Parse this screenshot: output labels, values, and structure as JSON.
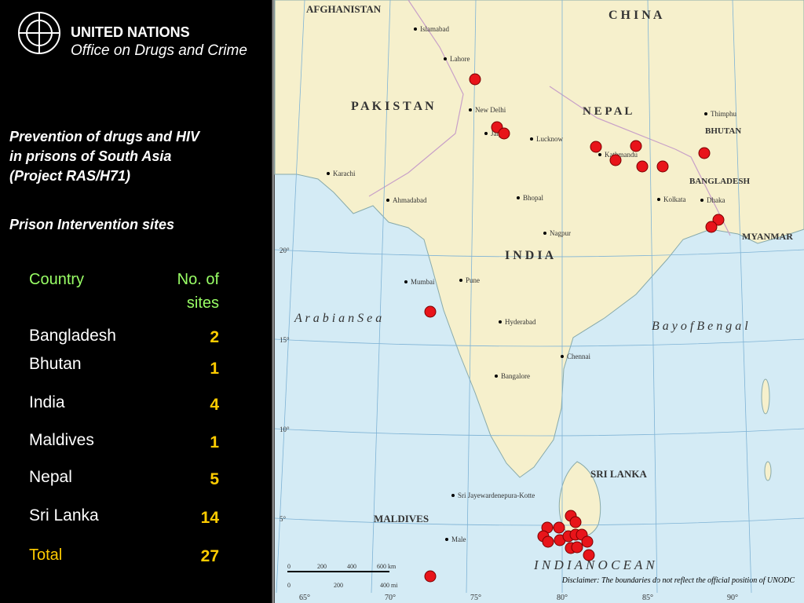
{
  "header": {
    "org_line1": "UNITED NATIONS",
    "org_line2": "Office on Drugs and Crime"
  },
  "title_lines": [
    "Prevention of drugs and HIV",
    "in prisons of South Asia",
    "(Project RAS/H71)"
  ],
  "subtitle": "Prison Intervention sites",
  "table": {
    "columns": {
      "country": "Country",
      "count_lines": [
        "No. of",
        "sites"
      ]
    },
    "rows": [
      [
        "Bangladesh",
        2
      ],
      [
        "Bhutan",
        1
      ],
      [
        "India",
        4
      ],
      [
        "Maldives",
        1
      ],
      [
        "Nepal",
        5
      ],
      [
        "Sri Lanka",
        14
      ]
    ],
    "total": [
      "Total",
      27
    ]
  },
  "map": {
    "countries": [
      "AFGHANISTAN",
      "C H I N A",
      "P A K I S T A N",
      "N E P A L",
      "BHUTAN",
      "BANGLADESH",
      "I N D I A",
      "MYANMAR",
      "SRI LANKA",
      "MALDIVES"
    ],
    "seas": [
      "A r a b i a n   S e a",
      "B a y   o f   B e n g a l",
      "I N D I A N   O C E A N"
    ],
    "cities": [
      "New Delhi",
      "Mumbai",
      "Kolkata",
      "Chennai",
      "Hyderabad",
      "Bangalore",
      "Karachi",
      "Lahore",
      "Kathmandu",
      "Dhaka",
      "Male",
      "Thimphu",
      "Ahmadabad",
      "Jaipur",
      "Lucknow",
      "Bhopal",
      "Pune",
      "Nagpur",
      "Sri Jayewardenepura-Kotte",
      "Islamabad"
    ],
    "longitudes": [
      "65°",
      "70°",
      "75°",
      "80°",
      "85°",
      "90°"
    ],
    "latitudes": [
      "20°",
      "15°",
      "10°",
      "5°"
    ],
    "scale_km": [
      "0",
      "200",
      "400",
      "600 km"
    ],
    "scale_mi": [
      "0",
      "200",
      "400 mi"
    ]
  },
  "disclaimer": "Disclaimer: The boundaries do not reflect the official position of UNODC"
}
